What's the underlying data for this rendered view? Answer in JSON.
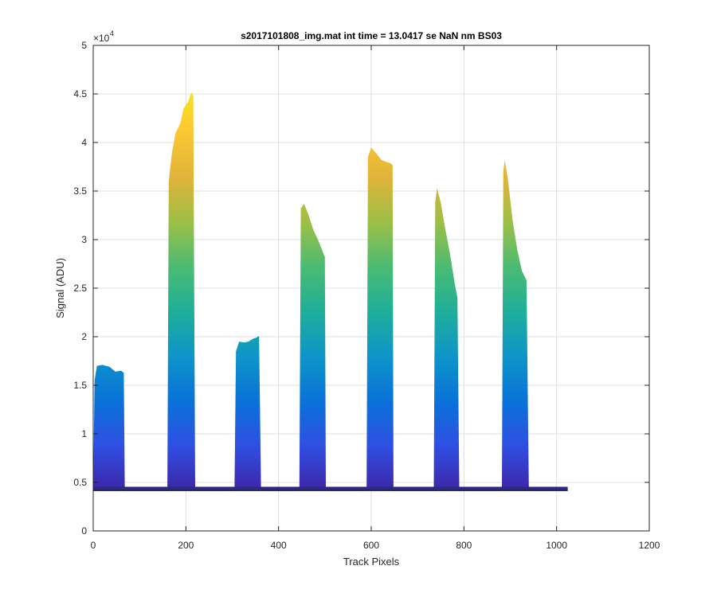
{
  "chart_data": {
    "type": "area",
    "title": "s2017101808_img.mat int time = 13.0417 se  NaN nm BS03",
    "xlabel": "Track Pixels",
    "ylabel": "Signal (ADU)",
    "y_exponent_label": "×10",
    "y_exponent": "4",
    "xlim": [
      0,
      1200
    ],
    "ylim": [
      0,
      50000
    ],
    "x_ticks": [
      0,
      200,
      400,
      600,
      800,
      1000,
      1200
    ],
    "x_tick_labels": [
      "0",
      "200",
      "400",
      "600",
      "800",
      "1000",
      "1200"
    ],
    "y_ticks": [
      0,
      5000,
      10000,
      15000,
      20000,
      25000,
      30000,
      35000,
      40000,
      45000,
      50000
    ],
    "y_tick_labels": [
      "0",
      "0.5",
      "1",
      "1.5",
      "2",
      "2.5",
      "3",
      "3.5",
      "4",
      "4.5",
      "5"
    ],
    "grid": true,
    "baseline": 4200,
    "data_x_range": [
      0,
      1024
    ],
    "colormap": [
      "#3e26a8",
      "#2f4fe3",
      "#0a72d8",
      "#0d95c9",
      "#1fae9a",
      "#4bbb73",
      "#9bbf47",
      "#e0b43a",
      "#fac634",
      "#f7e51e"
    ],
    "peaks": [
      {
        "x_start": 0,
        "x_end": 68,
        "upper_envelope": [
          [
            0,
            4500
          ],
          [
            3,
            15500
          ],
          [
            8,
            17000
          ],
          [
            20,
            17100
          ],
          [
            35,
            16900
          ],
          [
            48,
            16400
          ],
          [
            60,
            16500
          ],
          [
            66,
            16300
          ],
          [
            68,
            4500
          ]
        ]
      },
      {
        "x_start": 160,
        "x_end": 220,
        "upper_envelope": [
          [
            160,
            4500
          ],
          [
            163,
            36000
          ],
          [
            170,
            39000
          ],
          [
            178,
            41000
          ],
          [
            188,
            42000
          ],
          [
            195,
            43500
          ],
          [
            205,
            44200
          ],
          [
            212,
            45200
          ],
          [
            216,
            44800
          ],
          [
            220,
            4500
          ]
        ]
      },
      {
        "x_start": 305,
        "x_end": 362,
        "upper_envelope": [
          [
            305,
            4500
          ],
          [
            308,
            18500
          ],
          [
            315,
            19500
          ],
          [
            325,
            19400
          ],
          [
            335,
            19500
          ],
          [
            345,
            19800
          ],
          [
            352,
            19900
          ],
          [
            358,
            20100
          ],
          [
            362,
            4500
          ]
        ]
      },
      {
        "x_start": 445,
        "x_end": 502,
        "upper_envelope": [
          [
            445,
            4500
          ],
          [
            448,
            33200
          ],
          [
            455,
            33700
          ],
          [
            465,
            32500
          ],
          [
            475,
            31000
          ],
          [
            485,
            30000
          ],
          [
            495,
            28800
          ],
          [
            500,
            28200
          ],
          [
            502,
            4500
          ]
        ]
      },
      {
        "x_start": 590,
        "x_end": 648,
        "upper_envelope": [
          [
            590,
            4500
          ],
          [
            593,
            38500
          ],
          [
            600,
            39500
          ],
          [
            612,
            38800
          ],
          [
            622,
            38200
          ],
          [
            632,
            38000
          ],
          [
            640,
            37900
          ],
          [
            646,
            37700
          ],
          [
            648,
            4500
          ]
        ]
      },
      {
        "x_start": 735,
        "x_end": 790,
        "upper_envelope": [
          [
            735,
            4500
          ],
          [
            738,
            33800
          ],
          [
            742,
            35300
          ],
          [
            750,
            33800
          ],
          [
            760,
            31000
          ],
          [
            770,
            28500
          ],
          [
            780,
            25500
          ],
          [
            786,
            24000
          ],
          [
            790,
            4500
          ]
        ]
      },
      {
        "x_start": 882,
        "x_end": 940,
        "upper_envelope": [
          [
            882,
            4500
          ],
          [
            885,
            37000
          ],
          [
            888,
            38200
          ],
          [
            895,
            36200
          ],
          [
            905,
            32000
          ],
          [
            915,
            29000
          ],
          [
            925,
            26800
          ],
          [
            935,
            25800
          ],
          [
            940,
            4500
          ]
        ]
      }
    ]
  }
}
